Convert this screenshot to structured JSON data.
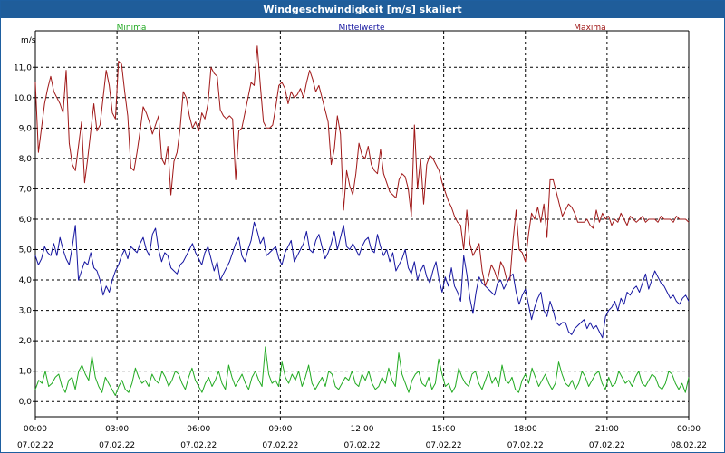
{
  "window": {
    "title": "Windgeschwindigkeit [m/s] skaliert"
  },
  "colors": {
    "minima": "#22aa22",
    "mittelwerte": "#1515a0",
    "maxima": "#a01818",
    "grid": "#000000",
    "titlebar": "#1f5d9a"
  },
  "chart_data": {
    "type": "line",
    "title": "Windgeschwindigkeit [m/s] skaliert",
    "ylabel": "m/s",
    "ylim": [
      -0.5,
      12.2
    ],
    "yticks": [
      0,
      1,
      2,
      3,
      4,
      5,
      6,
      7,
      8,
      9,
      10,
      11
    ],
    "ytick_labels": [
      "0,0",
      "1,0",
      "2,0",
      "3,0",
      "4,0",
      "5,0",
      "6,0",
      "7,0",
      "8,0",
      "9,0",
      "10,0",
      "11,0"
    ],
    "x_range_hours": [
      0,
      24
    ],
    "xticks": [
      {
        "time": "00:00",
        "date": "07.02.22"
      },
      {
        "time": "03:00",
        "date": "07.02.22"
      },
      {
        "time": "06:00",
        "date": "07.02.22"
      },
      {
        "time": "09:00",
        "date": "07.02.22"
      },
      {
        "time": "12:00",
        "date": "07.02.22"
      },
      {
        "time": "15:00",
        "date": "07.02.22"
      },
      {
        "time": "18:00",
        "date": "07.02.22"
      },
      {
        "time": "21:00",
        "date": "07.02.22"
      },
      {
        "time": "00:00",
        "date": "08.02.22"
      }
    ],
    "grid": true,
    "legend_position": "top",
    "series": [
      {
        "name": "Minima",
        "color": "#22aa22",
        "values": [
          0.4,
          0.7,
          0.6,
          1.0,
          0.5,
          0.6,
          0.8,
          0.9,
          0.5,
          0.3,
          0.7,
          0.8,
          0.4,
          1.0,
          1.2,
          0.9,
          0.7,
          1.5,
          0.8,
          0.5,
          0.3,
          0.8,
          0.6,
          0.4,
          0.2,
          0.5,
          0.7,
          0.4,
          0.3,
          0.6,
          1.1,
          0.8,
          0.6,
          0.7,
          0.5,
          0.9,
          0.7,
          0.6,
          1.0,
          0.8,
          0.5,
          0.7,
          1.0,
          0.9,
          0.6,
          0.4,
          0.8,
          1.1,
          0.7,
          0.5,
          0.3,
          0.6,
          0.8,
          0.5,
          0.7,
          1.0,
          0.6,
          0.4,
          1.2,
          0.8,
          0.5,
          0.7,
          0.9,
          0.6,
          0.4,
          0.8,
          1.0,
          0.7,
          0.5,
          1.8,
          0.9,
          0.6,
          0.7,
          0.5,
          1.3,
          0.8,
          0.6,
          0.9,
          0.7,
          1.0,
          0.5,
          0.8,
          1.2,
          0.6,
          0.4,
          0.6,
          0.8,
          0.5,
          1.0,
          0.9,
          0.5,
          0.4,
          0.6,
          0.8,
          0.7,
          1.0,
          0.6,
          0.5,
          0.9,
          0.7,
          1.0,
          0.6,
          0.4,
          0.5,
          0.8,
          0.6,
          1.1,
          0.7,
          0.5,
          1.6,
          0.9,
          0.6,
          0.3,
          0.7,
          0.9,
          1.0,
          0.6,
          0.5,
          0.8,
          0.4,
          0.6,
          1.4,
          0.9,
          0.5,
          0.6,
          0.3,
          0.5,
          1.1,
          0.8,
          0.6,
          0.5,
          0.9,
          1.0,
          0.6,
          0.4,
          0.7,
          1.0,
          0.6,
          0.8,
          0.5,
          1.2,
          0.7,
          0.6,
          0.8,
          0.4,
          0.3,
          0.7,
          0.9,
          0.6,
          1.1,
          0.8,
          0.5,
          0.7,
          0.9,
          0.6,
          0.4,
          0.6,
          1.3,
          0.9,
          0.6,
          0.5,
          0.7,
          0.4,
          0.6,
          1.0,
          0.8,
          0.5,
          0.7,
          0.9,
          1.0,
          0.6,
          0.4,
          0.8,
          0.5,
          0.6,
          1.0,
          0.8,
          0.6,
          0.7,
          0.5,
          0.8,
          1.0,
          0.6,
          0.5,
          0.7,
          0.9,
          0.8,
          0.5,
          0.4,
          0.6,
          1.0,
          0.9,
          0.6,
          0.4,
          0.6,
          0.3,
          0.8
        ]
      },
      {
        "name": "Mittelwerte",
        "color": "#1515a0",
        "values": [
          4.8,
          4.5,
          4.7,
          5.1,
          4.9,
          4.8,
          5.2,
          4.8,
          5.4,
          5.0,
          4.7,
          4.5,
          5.1,
          5.8,
          4.0,
          4.3,
          4.6,
          4.5,
          4.9,
          4.4,
          4.3,
          4.0,
          3.5,
          3.8,
          3.6,
          4.0,
          4.3,
          4.5,
          4.8,
          5.0,
          4.7,
          5.1,
          5.0,
          4.9,
          5.2,
          5.4,
          5.0,
          4.8,
          5.5,
          5.7,
          5.0,
          4.6,
          4.9,
          4.8,
          4.4,
          4.3,
          4.2,
          4.5,
          4.6,
          4.8,
          5.0,
          5.2,
          4.9,
          4.7,
          4.5,
          4.9,
          5.1,
          4.7,
          4.3,
          4.6,
          4.0,
          4.2,
          4.4,
          4.6,
          4.9,
          5.2,
          5.4,
          4.8,
          4.6,
          5.0,
          5.3,
          5.9,
          5.6,
          5.2,
          5.4,
          4.8,
          4.9,
          5.0,
          5.1,
          4.7,
          4.5,
          4.9,
          5.1,
          5.3,
          4.6,
          4.8,
          5.0,
          5.2,
          5.6,
          5.0,
          4.9,
          5.3,
          5.5,
          5.1,
          4.7,
          4.9,
          5.2,
          5.6,
          5.0,
          5.4,
          5.8,
          5.1,
          5.0,
          5.2,
          5.0,
          4.8,
          5.1,
          5.3,
          5.4,
          5.0,
          4.9,
          5.5,
          5.1,
          4.8,
          5.0,
          4.6,
          4.9,
          4.3,
          4.5,
          4.7,
          5.0,
          4.4,
          4.2,
          4.6,
          4.0,
          4.3,
          4.5,
          4.1,
          3.9,
          4.3,
          4.6,
          4.0,
          3.6,
          4.1,
          3.8,
          4.4,
          3.8,
          3.6,
          3.3,
          4.8,
          4.2,
          3.4,
          2.9,
          3.6,
          4.1,
          3.9,
          3.8,
          3.7,
          3.6,
          3.5,
          3.9,
          4.0,
          3.7,
          3.9,
          4.1,
          4.2,
          3.6,
          3.2,
          3.5,
          3.7,
          3.2,
          2.7,
          3.1,
          3.4,
          3.6,
          3.0,
          2.8,
          3.3,
          3.0,
          2.6,
          2.5,
          2.6,
          2.6,
          2.3,
          2.2,
          2.4,
          2.5,
          2.6,
          2.7,
          2.4,
          2.6,
          2.4,
          2.5,
          2.3,
          2.1,
          2.8,
          3.0,
          3.1,
          3.3,
          3.0,
          3.4,
          3.2,
          3.6,
          3.5,
          3.7,
          3.8,
          3.6,
          3.9,
          4.2,
          3.7,
          4.0,
          4.3,
          4.1,
          3.9,
          3.8,
          3.6,
          3.4,
          3.5,
          3.3,
          3.2,
          3.4,
          3.5,
          3.3
        ]
      },
      {
        "name": "Maxima",
        "color": "#a01818",
        "values": [
          10.5,
          8.2,
          9.0,
          9.8,
          10.3,
          10.7,
          10.2,
          10.0,
          9.8,
          9.5,
          10.9,
          8.5,
          7.8,
          7.6,
          8.4,
          9.2,
          7.2,
          8.0,
          8.9,
          9.8,
          8.9,
          9.1,
          10.0,
          10.9,
          10.4,
          9.5,
          9.3,
          11.2,
          11.1,
          10.2,
          9.4,
          7.7,
          7.6,
          8.2,
          8.9,
          9.7,
          9.5,
          9.2,
          8.8,
          9.1,
          9.4,
          8.0,
          7.8,
          8.4,
          6.8,
          7.9,
          8.2,
          9.0,
          10.2,
          10.0,
          9.4,
          9.0,
          9.2,
          8.9,
          9.5,
          9.3,
          9.8,
          11.0,
          10.8,
          10.7,
          9.6,
          9.4,
          9.3,
          9.4,
          9.3,
          7.3,
          8.9,
          9.0,
          9.5,
          10.0,
          10.5,
          10.4,
          11.7,
          10.4,
          9.2,
          9.0,
          9.0,
          9.1,
          9.7,
          10.4,
          10.5,
          10.3,
          9.8,
          10.2,
          10.0,
          10.1,
          10.3,
          10.0,
          10.5,
          10.9,
          10.6,
          10.2,
          10.4,
          10.0,
          9.6,
          9.2,
          7.8,
          8.3,
          9.4,
          8.8,
          6.3,
          7.6,
          7.1,
          6.8,
          7.5,
          8.5,
          8.1,
          8.0,
          8.4,
          7.8,
          7.6,
          7.5,
          8.3,
          7.5,
          7.2,
          6.9,
          6.8,
          6.7,
          7.3,
          7.5,
          7.4,
          7.0,
          6.1,
          9.1,
          7.0,
          8.0,
          6.5,
          7.8,
          8.1,
          8.0,
          7.8,
          7.6,
          7.2,
          6.9,
          6.6,
          6.4,
          6.1,
          5.9,
          5.8,
          5.0,
          6.3,
          5.2,
          4.8,
          5.0,
          5.2,
          4.3,
          3.8,
          4.1,
          4.5,
          4.3,
          4.0,
          4.6,
          4.4,
          4.0,
          4.0,
          5.3,
          6.3,
          5.0,
          4.9,
          4.6,
          5.5,
          6.2,
          6.0,
          6.4,
          5.9,
          6.5,
          5.4,
          7.3,
          7.3,
          6.9,
          6.5,
          6.1,
          6.3,
          6.5,
          6.4,
          6.2,
          5.9,
          5.9,
          5.9,
          6.0,
          5.8,
          5.7,
          6.3,
          5.9,
          6.2,
          6.0,
          6.1,
          5.8,
          6.0,
          5.9,
          6.2,
          6.0,
          5.8,
          6.1,
          6.0,
          5.9,
          6.0,
          6.1,
          5.9,
          6.0,
          6.0,
          6.0,
          5.9,
          6.1,
          6.0,
          6.0,
          6.0,
          5.9,
          6.1,
          6.0,
          6.0,
          6.0,
          5.9
        ]
      }
    ]
  }
}
